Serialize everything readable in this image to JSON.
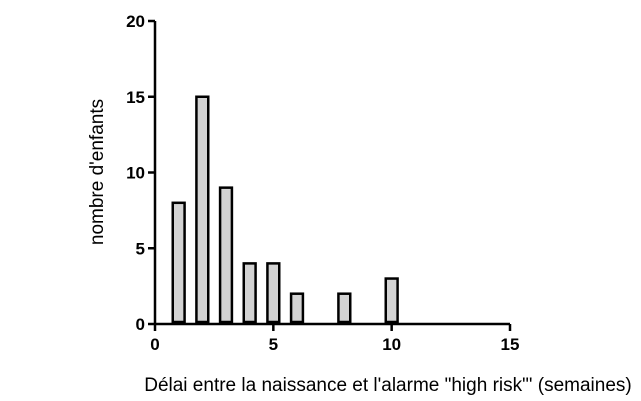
{
  "chart_data": {
    "type": "bar",
    "xlabel": "Délai entre la naissance et l'alarme \"high risk\"' (semaines)",
    "ylabel": "nombre d'enfants",
    "xlim": [
      0,
      15
    ],
    "ylim": [
      0,
      20
    ],
    "x_ticks": [
      "0",
      "5",
      "10",
      "15"
    ],
    "y_ticks": [
      "0",
      "5",
      "10",
      "15",
      "20"
    ],
    "x_tick_values": [
      0,
      5,
      10,
      15
    ],
    "y_tick_values": [
      0,
      5,
      10,
      15,
      20
    ],
    "x": [
      1,
      2,
      3,
      4,
      5,
      6,
      8,
      10
    ],
    "values": [
      8,
      15,
      9,
      4,
      4,
      2,
      2,
      3
    ],
    "bar_width_units": 0.5,
    "grid": false,
    "legend": "none",
    "colors": {
      "bar_fill": "#d3d3d3",
      "bar_stroke": "#000000",
      "axis": "#000000"
    }
  }
}
